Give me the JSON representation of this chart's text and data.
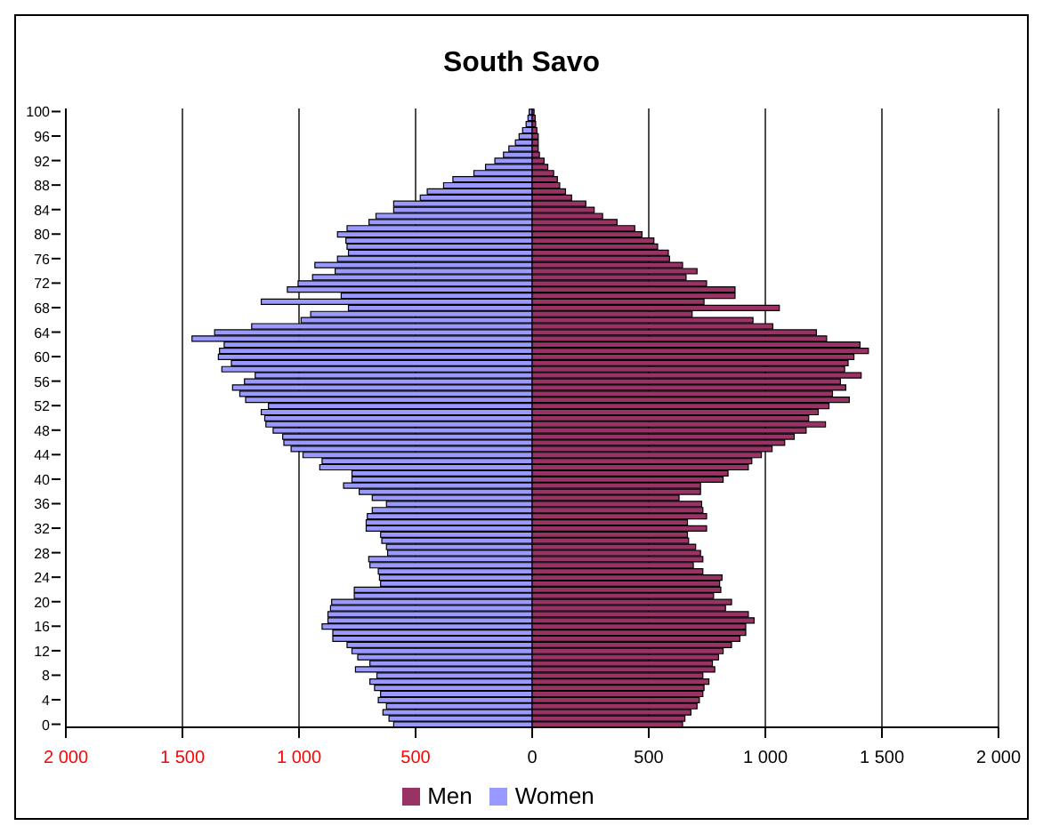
{
  "chart_data": {
    "type": "bar",
    "title": "South Savo",
    "orientation": "horizontal",
    "stacked": true,
    "categories": [
      "100",
      null,
      null,
      null,
      "96",
      null,
      null,
      null,
      "92",
      null,
      null,
      null,
      "88",
      null,
      null,
      null,
      "84",
      null,
      null,
      null,
      "80",
      null,
      null,
      null,
      "76",
      null,
      null,
      null,
      "72",
      null,
      null,
      null,
      "68",
      null,
      null,
      null,
      "64",
      null,
      null,
      null,
      "60",
      null,
      null,
      null,
      "56",
      null,
      null,
      null,
      "52",
      null,
      null,
      null,
      "48",
      null,
      null,
      null,
      "44",
      null,
      null,
      null,
      "40",
      null,
      null,
      null,
      "36",
      null,
      null,
      null,
      "32",
      null,
      null,
      null,
      "28",
      null,
      null,
      null,
      "24",
      null,
      null,
      null,
      "20",
      null,
      null,
      null,
      "16",
      null,
      null,
      null,
      "12",
      null,
      null,
      null,
      "8",
      null,
      null,
      null,
      "4",
      null,
      null,
      null,
      "0"
    ],
    "series": [
      {
        "name": "Women",
        "color": "#9999ff",
        "values": [
          -13,
          -18,
          -26,
          -41,
          -56,
          -72,
          -100,
          -123,
          -160,
          -200,
          -250,
          -340,
          -380,
          -450,
          -480,
          -594,
          -594,
          -670,
          -700,
          -794,
          -835,
          -799,
          -794,
          -788,
          -835,
          -932,
          -845,
          -942,
          -1004,
          -1050,
          -819,
          -1162,
          -788,
          -950,
          -991,
          -1203,
          -1362,
          -1459,
          -1321,
          -1341,
          -1346,
          -1290,
          -1331,
          -1188,
          -1234,
          -1285,
          -1254,
          -1229,
          -1131,
          -1162,
          -1147,
          -1142,
          -1111,
          -1070,
          -1065,
          -1034,
          -983,
          -901,
          -911,
          -773,
          -773,
          -809,
          -742,
          -686,
          -625,
          -686,
          -707,
          -712,
          -712,
          -650,
          -645,
          -625,
          -620,
          -701,
          -696,
          -660,
          -655,
          -650,
          -763,
          -763,
          -860,
          -865,
          -876,
          -876,
          -901,
          -855,
          -855,
          -794,
          -773,
          -748,
          -696,
          -758,
          -666,
          -696,
          -676,
          -650,
          -660,
          -625,
          -640,
          -614,
          -594
        ]
      },
      {
        "name": "Men",
        "color": "#993366",
        "values": [
          8,
          13,
          15,
          20,
          26,
          26,
          26,
          31,
          51,
          67,
          92,
          108,
          118,
          143,
          169,
          230,
          266,
          302,
          364,
          440,
          471,
          522,
          538,
          584,
          589,
          645,
          707,
          660,
          748,
          870,
          870,
          737,
          1060,
          686,
          947,
          1032,
          1219,
          1263,
          1406,
          1442,
          1380,
          1355,
          1340,
          1411,
          1322,
          1345,
          1288,
          1360,
          1273,
          1227,
          1186,
          1258,
          1175,
          1124,
          1083,
          1029,
          983,
          942,
          927,
          840,
          819,
          722,
          722,
          630,
          727,
          732,
          748,
          666,
          748,
          666,
          671,
          701,
          722,
          732,
          691,
          732,
          814,
          804,
          809,
          778,
          855,
          829,
          927,
          952,
          916,
          916,
          891,
          855,
          819,
          799,
          773,
          783,
          732,
          758,
          737,
          732,
          717,
          707,
          681,
          655,
          645
        ]
      }
    ],
    "xlim": [
      -2000,
      2000
    ],
    "xticks": [
      {
        "value": -2000,
        "label": "2 000"
      },
      {
        "value": -1500,
        "label": "1 500"
      },
      {
        "value": -1000,
        "label": "1 000"
      },
      {
        "value": -500,
        "label": "500"
      },
      0,
      500,
      {
        "value": 1000,
        "label": "1 000"
      },
      {
        "value": 1500,
        "label": "1 500"
      },
      {
        "value": 2000,
        "label": "2 000"
      }
    ],
    "grid": "x",
    "legend": "bottom"
  }
}
